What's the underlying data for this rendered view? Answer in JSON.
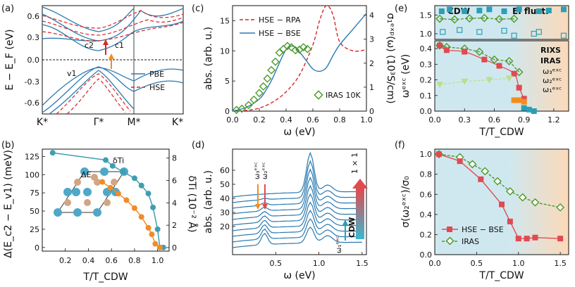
{
  "colors": {
    "pbe": "#2a7ab0",
    "hse": "#d62728",
    "iras": "#4e9a2c",
    "cdw_bg": "#cfe8f0",
    "ei_bg": "#fcd9b8",
    "hse_bse_marker": "#e04a50",
    "rixs": "#b9e08a",
    "omega1": "#2a9fb8",
    "omega2": "#e04a50",
    "omega3": "#f28c1e",
    "dti": "#3e9fb0",
    "de": "#f08c28"
  },
  "icons": {
    "iras_marker": "diamond-open",
    "hse_bse_marker": "square-filled",
    "rixs_marker": "triangle-down",
    "arrow": "arrow-up"
  },
  "panel_labels": [
    "(a)",
    "(b)",
    "(c)",
    "(d)",
    "(e)",
    "(f)"
  ],
  "chart_data": [
    {
      "id": "a",
      "type": "line",
      "ylabel": "E − E_F (eV)",
      "yticks": [
        "0.6",
        "0.3",
        "0.0",
        "-0.3",
        "-0.6"
      ],
      "ylim": [
        -0.75,
        0.75
      ],
      "xticks": [
        "K*",
        "Γ*",
        "M*",
        "K*"
      ],
      "legend": [
        "PBE",
        "HSE"
      ],
      "annotations": [
        "c2",
        "c1",
        "v1"
      ]
    },
    {
      "id": "b",
      "type": "line",
      "xlabel": "T/T_CDW",
      "ylabel_left": "Δ(E_c2 − E_v1) (meV)",
      "ylabel_right": "δTi (10⁻² Å)",
      "xticks": [
        "0.2",
        "0.4",
        "0.6",
        "0.8",
        "1.0"
      ],
      "yticks_left": [
        "0",
        "25",
        "50",
        "75",
        "100",
        "125"
      ],
      "yticks_right": [
        "0",
        "2",
        "4",
        "6",
        "8"
      ],
      "xlim": [
        0,
        1.1
      ],
      "ylim_left": [
        -5,
        135
      ],
      "series": [
        {
          "name": "δTi",
          "x": [
            0.09,
            0.55,
            0.61,
            0.7,
            0.8,
            0.86,
            0.92,
            0.96,
            1.0,
            1.02,
            1.05
          ],
          "values": [
            130,
            120,
            112,
            104,
            95,
            85,
            74,
            55,
            25,
            0,
            0
          ]
        },
        {
          "name": "ΔE",
          "x": [
            0.52,
            0.59,
            0.66,
            0.73,
            0.8,
            0.86,
            0.92,
            0.95,
            0.98,
            1.02
          ],
          "values": [
            90,
            82,
            74,
            65,
            54,
            42,
            27,
            18,
            5,
            0
          ]
        }
      ]
    },
    {
      "id": "c",
      "type": "line",
      "xlabel": "ω (eV)",
      "ylabel_left": "abs. (arb. u.)",
      "ylabel_right": "σ₁ᵉˣᵖ(ω) (10³S/cm)",
      "xticks": [
        "0.0",
        "0.2",
        "0.4",
        "0.6",
        "0.8",
        "1.0"
      ],
      "yticks_left": [
        "0",
        "5",
        "10",
        "15"
      ],
      "yticks_right": [
        "0",
        "1",
        "2",
        "3",
        "4"
      ],
      "xlim": [
        0,
        1.0
      ],
      "ylim": [
        0,
        17.5
      ],
      "legend": [
        "HSE − RPA",
        "HSE − BSE",
        "IRAS 10K"
      ],
      "series": [
        {
          "name": "HSE − RPA",
          "x": [
            0,
            0.1,
            0.2,
            0.3,
            0.4,
            0.5,
            0.6,
            0.65,
            0.7,
            0.75,
            0.8,
            0.9,
            1.0
          ],
          "values": [
            0,
            0.1,
            0.5,
            1.5,
            3.2,
            6,
            11,
            15,
            17.5,
            16,
            11.5,
            10,
            10.2
          ]
        },
        {
          "name": "HSE − BSE",
          "x": [
            0,
            0.1,
            0.2,
            0.25,
            0.3,
            0.35,
            0.4,
            0.45,
            0.5,
            0.55,
            0.6,
            0.65,
            0.7,
            0.75,
            0.8,
            0.9,
            1.0
          ],
          "values": [
            0,
            0.6,
            2,
            3.5,
            5.5,
            8,
            10.2,
            10.8,
            9.8,
            8.4,
            7,
            6.6,
            7.2,
            9.2,
            11,
            13.6,
            16.2
          ]
        },
        {
          "name": "IRAS 10K",
          "x": [
            0.03,
            0.07,
            0.12,
            0.16,
            0.2,
            0.23,
            0.26,
            0.29,
            0.32,
            0.35,
            0.38,
            0.41,
            0.44,
            0.47,
            0.5,
            0.53,
            0.56
          ],
          "values": [
            0.2,
            0.4,
            1.0,
            1.9,
            3.0,
            4.1,
            5.4,
            6.8,
            8.2,
            9.7,
            10.3,
            10.8,
            10.6,
            10.1,
            10.2,
            10.6,
            10.3
          ]
        }
      ]
    },
    {
      "id": "d",
      "type": "line",
      "xlabel": "ω (eV)",
      "ylabel": "abs. (arb. u.)",
      "xticks": [
        "0.5",
        "1.0",
        "1.5"
      ],
      "yticks": [
        "20",
        "30",
        "40",
        "50",
        "60"
      ],
      "xlim": [
        0,
        1.55
      ],
      "ylim": [
        0,
        75
      ],
      "annotations": [
        "ω₃ᵉˣᶜ",
        "ω₂ᵉˣᶜ",
        "ω₁ᵉˣᶜ",
        "CDW",
        "1 × 1"
      ],
      "offsets": [
        5,
        9,
        13,
        17,
        21,
        25,
        29,
        33,
        37,
        41
      ]
    },
    {
      "id": "e",
      "type": "scatter",
      "xlabel": "T/T_CDW",
      "ylabel": "ωᵉˣᶜ (eV)",
      "xticks": [
        "0.0",
        "0.3",
        "0.6",
        "0.9",
        "1.2"
      ],
      "yticks_top": [
        "1.0",
        "1.5"
      ],
      "yticks_bottom": [
        "0.0",
        "0.1",
        "0.2",
        "0.3",
        "0.4"
      ],
      "xlim": [
        0,
        1.35
      ],
      "ylim_top": [
        0.85,
        1.75
      ],
      "ylim_bottom": [
        0,
        0.45
      ],
      "regions": [
        "CDW",
        "EI fluct."
      ],
      "legend": [
        "RIXS",
        "IRAS",
        "ω₃ᵉˣᶜ",
        "ω₂ᵉˣᶜ",
        "ω₁ᵉˣᶜ"
      ],
      "series": [
        {
          "name": "IRAS",
          "x": [
            0.05,
            0.12,
            0.3,
            0.45,
            0.6,
            0.75,
            0.85
          ],
          "values": [
            0.42,
            0.41,
            0.4,
            0.38,
            0.33,
            0.32,
            0.25
          ]
        },
        {
          "name": "HSE − BSE",
          "x": [
            0.05,
            0.12,
            0.3,
            0.5,
            0.65,
            0.8,
            0.85,
            0.9
          ],
          "values": [
            0.42,
            0.39,
            0.38,
            0.33,
            0.29,
            0.24,
            0.15,
            0.08
          ]
        },
        {
          "name": "RIXS",
          "x": [
            0.05,
            0.3,
            0.55,
            0.75
          ],
          "values": [
            0.17,
            0.19,
            0.2,
            0.21
          ]
        },
        {
          "name": "ω₃ᵉˣᶜ",
          "x": [
            0.8,
            0.85,
            0.9
          ],
          "values": [
            0.07,
            0.07,
            0.06
          ]
        },
        {
          "name": "ω₁ᵉˣᶜ",
          "x": [
            0.9,
            0.95,
            1.0
          ],
          "values": [
            0.02,
            0.01,
            0.0
          ]
        },
        {
          "name": "IRAS (top)",
          "x": [
            0.05,
            0.2,
            0.35,
            0.5,
            0.65,
            0.8
          ],
          "values": [
            1.4,
            1.38,
            1.41,
            1.42,
            1.39,
            1.4
          ]
        },
        {
          "name": "ω₂ᵉˣᶜ (top, filled)",
          "x": [
            0.07,
            0.15,
            0.3,
            0.45,
            0.55,
            0.7,
            0.85,
            1.05,
            1.15,
            1.3
          ],
          "values": [
            1.6,
            1.65,
            1.6,
            1.62,
            1.65,
            1.6,
            1.65,
            1.6,
            1.62,
            1.65
          ]
        },
        {
          "name": "ω₂ᵉˣᶜ (top, open)",
          "x": [
            0.08,
            0.25,
            0.45,
            0.7,
            0.8,
            1.0,
            1.05,
            1.3
          ],
          "values": [
            1.05,
            1.1,
            1.05,
            1.08,
            0.95,
            1.0,
            1.05,
            0.95
          ]
        }
      ]
    },
    {
      "id": "f",
      "type": "line",
      "xlabel": "T/T_CDW",
      "ylabel": "σ(ω₂ᵉˣᶜ)/σ₀",
      "xticks": [
        "0.0",
        "0.5",
        "1.0",
        "1.5"
      ],
      "yticks": [
        "0.0",
        "0.2",
        "0.4",
        "0.6",
        "0.8",
        "1.0"
      ],
      "xlim": [
        0,
        1.6
      ],
      "ylim": [
        0,
        1.05
      ],
      "legend": [
        "HSE − BSE",
        "IRAS"
      ],
      "series": [
        {
          "name": "HSE − BSE",
          "x": [
            0.05,
            0.3,
            0.55,
            0.8,
            0.9,
            1.0,
            1.1,
            1.2,
            1.5
          ],
          "values": [
            1.0,
            0.93,
            0.75,
            0.5,
            0.33,
            0.16,
            0.16,
            0.17,
            0.16
          ]
        },
        {
          "name": "IRAS",
          "x": [
            0.05,
            0.3,
            0.45,
            0.6,
            0.75,
            0.9,
            1.05,
            1.2,
            1.5
          ],
          "values": [
            1.0,
            0.97,
            0.9,
            0.83,
            0.73,
            0.63,
            0.57,
            0.52,
            0.47
          ]
        }
      ]
    }
  ]
}
